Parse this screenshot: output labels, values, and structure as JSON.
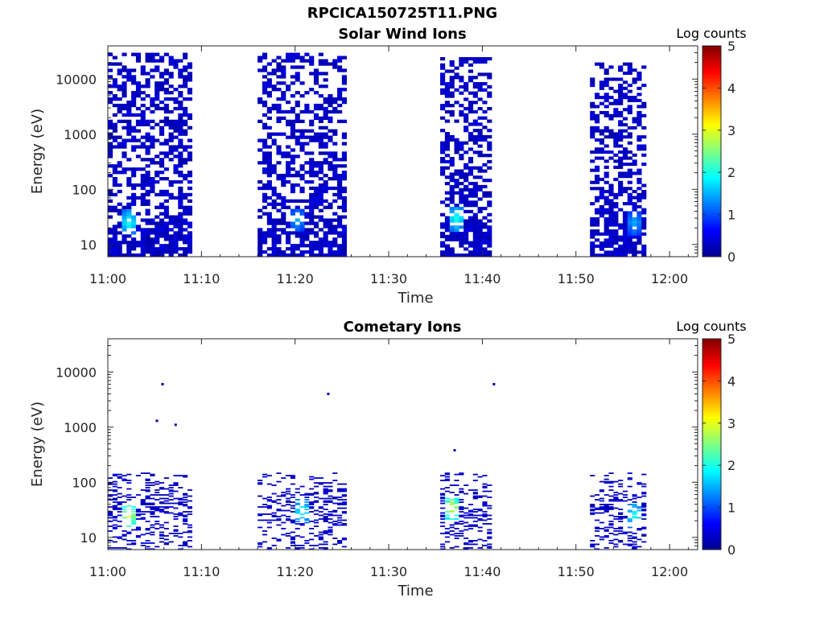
{
  "figure": {
    "file_title": "RPCICA150725T11.PNG"
  },
  "chart_data": [
    {
      "type": "heatmap",
      "title": "Solar Wind Ions",
      "xlabel": "Time",
      "ylabel": "Energy (eV)",
      "x_ticks": [
        "11:00",
        "11:10",
        "11:20",
        "11:30",
        "11:40",
        "11:50",
        "12:00"
      ],
      "xlim": [
        "11:00",
        "12:03"
      ],
      "y_ticks": [
        "10",
        "100",
        "1000",
        "10000"
      ],
      "ylim": [
        6,
        40000
      ],
      "y_scale": "log",
      "colorbar": {
        "label": "Log counts",
        "ticks": [
          "0",
          "1",
          "2",
          "3",
          "4",
          "5"
        ],
        "range": [
          0,
          5
        ],
        "colormap": "jet"
      },
      "data_blocks": [
        {
          "start": "11:00",
          "end": "11:09",
          "emin": 6,
          "emax": 30000,
          "level": "~0-0.5",
          "peak": {
            "time": "11:02",
            "energy": 25,
            "log_counts": 2
          }
        },
        {
          "start": "11:16",
          "end": "11:25.5",
          "emin": 6,
          "emax": 30000,
          "level": "~0-0.5",
          "peak": {
            "time": "11:20",
            "energy": 28,
            "log_counts": 1.5
          }
        },
        {
          "start": "11:35.5",
          "end": "11:41",
          "emin": 6,
          "emax": 25000,
          "level": "~0-0.5",
          "peak": {
            "time": "11:37",
            "energy": 30,
            "log_counts": 2
          }
        },
        {
          "start": "11:51.5",
          "end": "11:57.5",
          "emin": 6,
          "emax": 20000,
          "level": "~0-0.5",
          "peak": {
            "time": "11:56",
            "energy": 25,
            "log_counts": 1.5
          }
        }
      ]
    },
    {
      "type": "heatmap",
      "title": "Cometary Ions",
      "xlabel": "Time",
      "ylabel": "Energy (eV)",
      "x_ticks": [
        "11:00",
        "11:10",
        "11:20",
        "11:30",
        "11:40",
        "11:50",
        "12:00"
      ],
      "xlim": [
        "11:00",
        "12:03"
      ],
      "y_ticks": [
        "10",
        "100",
        "1000",
        "10000"
      ],
      "ylim": [
        6,
        40000
      ],
      "y_scale": "log",
      "colorbar": {
        "label": "Log counts",
        "ticks": [
          "0",
          "1",
          "2",
          "3",
          "4",
          "5"
        ],
        "range": [
          0,
          5
        ],
        "colormap": "jet"
      },
      "data_blocks": [
        {
          "start": "11:00",
          "end": "11:09",
          "emin": 6,
          "emax": 150,
          "level": "~0-0.5",
          "peak": {
            "time": "11:02",
            "energy": 25,
            "log_counts": 3
          }
        },
        {
          "start": "11:16",
          "end": "11:25.5",
          "emin": 6,
          "emax": 150,
          "level": "~0-0.5",
          "peak": {
            "time": "11:20.5",
            "energy": 30,
            "log_counts": 2
          }
        },
        {
          "start": "11:35.5",
          "end": "11:41",
          "emin": 6,
          "emax": 150,
          "level": "~0-0.5",
          "peak": {
            "time": "11:36.5",
            "energy": 35,
            "log_counts": 3
          }
        },
        {
          "start": "11:51.5",
          "end": "11:57.5",
          "emin": 6,
          "emax": 150,
          "level": "~0-0.5",
          "peak": {
            "time": "11:56",
            "energy": 25,
            "log_counts": 2
          }
        }
      ],
      "isolated_points": [
        {
          "time": "11:05.8",
          "energy": 6000
        },
        {
          "time": "11:05.2",
          "energy": 1300
        },
        {
          "time": "11:07.2",
          "energy": 1100
        },
        {
          "time": "11:23.5",
          "energy": 4000
        },
        {
          "time": "11:41.2",
          "energy": 6000
        },
        {
          "time": "11:37",
          "energy": 380
        }
      ]
    }
  ]
}
